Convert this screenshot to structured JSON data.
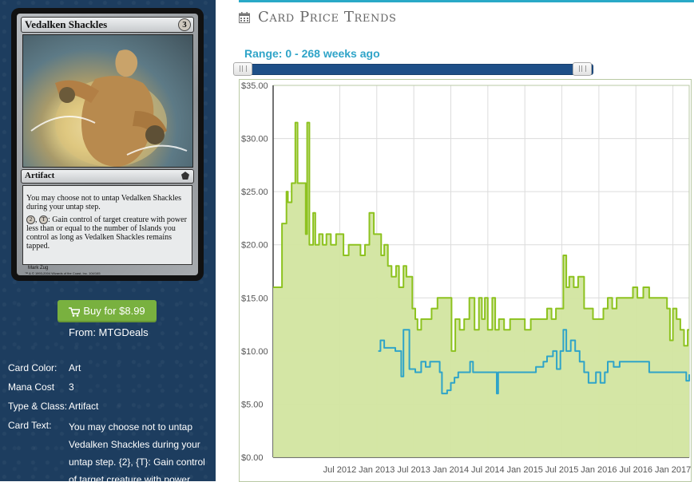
{
  "card": {
    "name": "Vedalken Shackles",
    "cost": "3",
    "type_line": "Artifact",
    "rules_text_1": "You may choose not to untap Vedalken Shackles during your untap step.",
    "rules_sym_2": "2",
    "rules_sym_t": "T",
    "rules_text_2": ": Gain control of target creature with power less than or equal to the number of Islands you control as long as Vedalken Shackles remains tapped.",
    "artist": "Mark Zug",
    "copyright": "™ & © 1993-2004 Wizards of the Coast, Inc. 104/165"
  },
  "buy": {
    "label": "Buy for $8.99",
    "from": "From: MTGDeals",
    "button_color": "#79b13f"
  },
  "attributes": {
    "color_label": "Card Color:",
    "color_value": "Art",
    "mana_label": "Mana Cost",
    "mana_value": "3",
    "type_label": "Type & Class:",
    "type_value": "Artifact",
    "text_label": "Card Text:",
    "text_value": "You may choose not to untap Vedalken Shackles during your untap step. {2}, {T}: Gain control of target creature with power"
  },
  "header": {
    "title": "Card Price Trends",
    "icon": "calendar-icon",
    "accent_color": "#29a9c7"
  },
  "range": {
    "label": "Range: 0 - 268 weeks ago",
    "min_weeks": 0,
    "max_weeks": 268
  },
  "chart_data": {
    "type": "area",
    "title": "",
    "xlabel": "",
    "ylabel": "",
    "ylim": [
      0,
      35
    ],
    "xlim": [
      2011.6,
      2017.22
    ],
    "y_ticks": [
      "$0.00",
      "$5.00",
      "$10.00",
      "$15.00",
      "$20.00",
      "$25.00",
      "$30.00",
      "$35.00"
    ],
    "x_ticks": [
      {
        "t": 2012.5,
        "label": "Jul 2012"
      },
      {
        "t": 2013.0,
        "label": "Jan 2013"
      },
      {
        "t": 2013.5,
        "label": "Jul 2013"
      },
      {
        "t": 2014.0,
        "label": "Jan 2014"
      },
      {
        "t": 2014.5,
        "label": "Jul 2014"
      },
      {
        "t": 2015.0,
        "label": "Jan 2015"
      },
      {
        "t": 2015.5,
        "label": "Jul 2015"
      },
      {
        "t": 2016.0,
        "label": "Jan 2016"
      },
      {
        "t": 2016.5,
        "label": "Jul 2016"
      },
      {
        "t": 2017.0,
        "label": "Jan 2017"
      }
    ],
    "grid": true,
    "series": [
      {
        "color": "#8dc21f",
        "fill": "#d2e5a0",
        "points": [
          [
            2011.6,
            16
          ],
          [
            2011.72,
            22
          ],
          [
            2011.78,
            25
          ],
          [
            2011.8,
            24
          ],
          [
            2011.85,
            25.8
          ],
          [
            2011.9,
            31.5
          ],
          [
            2011.93,
            25.8
          ],
          [
            2012.0,
            25.8
          ],
          [
            2012.04,
            21
          ],
          [
            2012.06,
            31.5
          ],
          [
            2012.09,
            20
          ],
          [
            2012.14,
            23
          ],
          [
            2012.17,
            20
          ],
          [
            2012.22,
            21
          ],
          [
            2012.27,
            20
          ],
          [
            2012.32,
            21
          ],
          [
            2012.38,
            20
          ],
          [
            2012.45,
            21
          ],
          [
            2012.55,
            19
          ],
          [
            2012.62,
            20
          ],
          [
            2012.7,
            20
          ],
          [
            2012.78,
            19
          ],
          [
            2012.84,
            20
          ],
          [
            2012.9,
            23
          ],
          [
            2012.96,
            21
          ],
          [
            2013.02,
            21
          ],
          [
            2013.06,
            19
          ],
          [
            2013.1,
            20
          ],
          [
            2013.15,
            18
          ],
          [
            2013.2,
            17
          ],
          [
            2013.26,
            18
          ],
          [
            2013.3,
            16
          ],
          [
            2013.36,
            18
          ],
          [
            2013.4,
            17
          ],
          [
            2013.46,
            17
          ],
          [
            2013.48,
            14
          ],
          [
            2013.52,
            13
          ],
          [
            2013.55,
            12
          ],
          [
            2013.6,
            13
          ],
          [
            2013.68,
            13
          ],
          [
            2013.74,
            14
          ],
          [
            2013.82,
            15
          ],
          [
            2013.9,
            15
          ],
          [
            2013.98,
            15
          ],
          [
            2014.01,
            10
          ],
          [
            2014.06,
            13
          ],
          [
            2014.12,
            12
          ],
          [
            2014.18,
            13
          ],
          [
            2014.25,
            15
          ],
          [
            2014.32,
            12
          ],
          [
            2014.38,
            15
          ],
          [
            2014.42,
            13
          ],
          [
            2014.46,
            15
          ],
          [
            2014.5,
            12
          ],
          [
            2014.56,
            15
          ],
          [
            2014.6,
            12
          ],
          [
            2014.65,
            13
          ],
          [
            2014.72,
            12
          ],
          [
            2014.8,
            13
          ],
          [
            2014.88,
            13
          ],
          [
            2014.95,
            13
          ],
          [
            2015.0,
            12
          ],
          [
            2015.08,
            13
          ],
          [
            2015.15,
            13
          ],
          [
            2015.22,
            13
          ],
          [
            2015.3,
            14
          ],
          [
            2015.36,
            13
          ],
          [
            2015.42,
            14
          ],
          [
            2015.48,
            14
          ],
          [
            2015.52,
            19
          ],
          [
            2015.56,
            16
          ],
          [
            2015.6,
            17
          ],
          [
            2015.66,
            16
          ],
          [
            2015.72,
            17
          ],
          [
            2015.8,
            14
          ],
          [
            2015.86,
            14
          ],
          [
            2015.92,
            13
          ],
          [
            2016.0,
            13
          ],
          [
            2016.06,
            14
          ],
          [
            2016.12,
            15
          ],
          [
            2016.18,
            14
          ],
          [
            2016.24,
            15
          ],
          [
            2016.3,
            15
          ],
          [
            2016.38,
            15
          ],
          [
            2016.46,
            16
          ],
          [
            2016.52,
            15
          ],
          [
            2016.6,
            16
          ],
          [
            2016.68,
            15
          ],
          [
            2016.74,
            15
          ],
          [
            2016.8,
            15
          ],
          [
            2016.86,
            15
          ],
          [
            2016.92,
            14
          ],
          [
            2016.96,
            11
          ],
          [
            2017.0,
            14
          ],
          [
            2017.05,
            13
          ],
          [
            2017.1,
            12
          ],
          [
            2017.15,
            10.5
          ],
          [
            2017.2,
            12
          ],
          [
            2017.22,
            12
          ]
        ]
      },
      {
        "color": "#2fa4c8",
        "points": [
          [
            2013.02,
            10
          ],
          [
            2013.05,
            11
          ],
          [
            2013.1,
            10.3
          ],
          [
            2013.2,
            10.3
          ],
          [
            2013.25,
            10
          ],
          [
            2013.3,
            10
          ],
          [
            2013.33,
            7.6
          ],
          [
            2013.36,
            12
          ],
          [
            2013.42,
            12
          ],
          [
            2013.44,
            8.3
          ],
          [
            2013.52,
            8
          ],
          [
            2013.6,
            9
          ],
          [
            2013.66,
            8.5
          ],
          [
            2013.72,
            9
          ],
          [
            2013.8,
            9
          ],
          [
            2013.85,
            8
          ],
          [
            2013.88,
            6
          ],
          [
            2013.95,
            6.3
          ],
          [
            2014.0,
            7
          ],
          [
            2014.05,
            7.5
          ],
          [
            2014.1,
            8
          ],
          [
            2014.2,
            8
          ],
          [
            2014.26,
            9
          ],
          [
            2014.3,
            8
          ],
          [
            2014.4,
            8
          ],
          [
            2014.5,
            8
          ],
          [
            2014.6,
            8
          ],
          [
            2014.62,
            6
          ],
          [
            2014.64,
            8
          ],
          [
            2014.8,
            8
          ],
          [
            2014.95,
            8
          ],
          [
            2015.05,
            8
          ],
          [
            2015.15,
            8.5
          ],
          [
            2015.25,
            9
          ],
          [
            2015.3,
            9.5
          ],
          [
            2015.38,
            10
          ],
          [
            2015.43,
            8.3
          ],
          [
            2015.48,
            10
          ],
          [
            2015.52,
            12
          ],
          [
            2015.56,
            10
          ],
          [
            2015.62,
            11
          ],
          [
            2015.68,
            10
          ],
          [
            2015.74,
            9
          ],
          [
            2015.8,
            8
          ],
          [
            2015.86,
            7
          ],
          [
            2015.92,
            7
          ],
          [
            2015.96,
            8
          ],
          [
            2016.02,
            7
          ],
          [
            2016.08,
            8
          ],
          [
            2016.12,
            9
          ],
          [
            2016.2,
            8.5
          ],
          [
            2016.28,
            9
          ],
          [
            2016.4,
            9
          ],
          [
            2016.5,
            9
          ],
          [
            2016.6,
            9
          ],
          [
            2016.68,
            8
          ],
          [
            2016.8,
            8
          ],
          [
            2016.9,
            8
          ],
          [
            2017.0,
            8
          ],
          [
            2017.1,
            8
          ],
          [
            2017.18,
            7.2
          ],
          [
            2017.22,
            7.8
          ]
        ]
      }
    ]
  }
}
